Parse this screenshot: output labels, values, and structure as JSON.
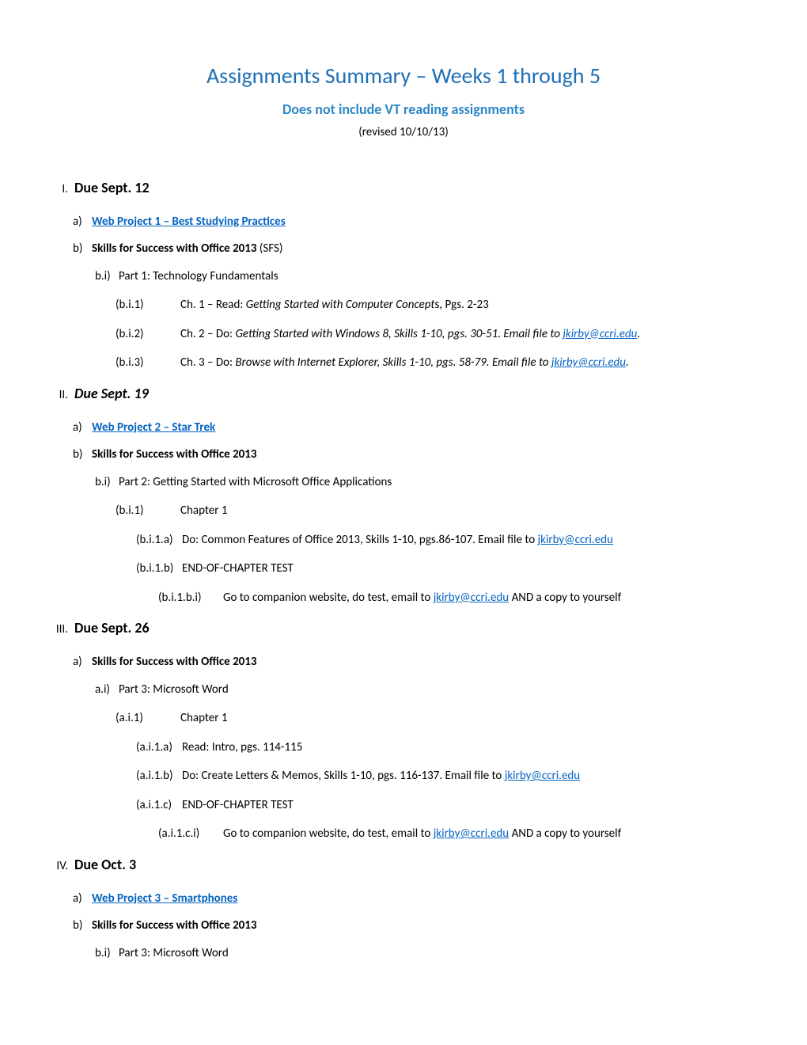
{
  "title": "Assignments Summary – Weeks 1 through 5",
  "subtitle": "Does not include VT reading assignments",
  "revised": "(revised 10/10/13)",
  "colors": {
    "title": "#1f6fb5",
    "subtitle": "#2e88c7",
    "link": "#0563c1",
    "text": "#000000",
    "background": "#ffffff"
  },
  "sections": [
    {
      "roman": "I.",
      "heading": "Due Sept. 12",
      "italic": false,
      "items": {
        "a_link": "Web Project 1 – Best Studying Practices",
        "b_text_bold": "Skills for Success with Office 2013",
        "b_text_suffix": " (SFS)",
        "bi_text": "Part 1: Technology Fundamentals",
        "bi1_prefix": "Ch. 1 – Read: ",
        "bi1_italic": "Getting Started with Computer Concept",
        "bi1_suffix": "s, Pgs. 2-23",
        "bi2_prefix": "Ch. 2 – Do: ",
        "bi2_italic": "Getting Started with Windows 8, Skills 1-10, pgs. 30-51. Email file to ",
        "bi2_link": "jkirby@ccri.edu",
        "bi2_period": ".",
        "bi3_prefix": "Ch. 3 – Do: ",
        "bi3_italic": "Browse with Internet Explorer, Skills 1-10, pgs. 58-79. Email file to ",
        "bi3_link": "jkirby@ccri.edu",
        "bi3_period": "."
      }
    },
    {
      "roman": "II.",
      "heading": "Due Sept. 19",
      "italic": true,
      "items": {
        "a_link": "Web Project 2 – Star Trek",
        "b_text_bold": "Skills for Success with Office 2013",
        "bi_text": "Part 2: Getting Started with Microsoft Office Applications",
        "bi1_text": "Chapter 1",
        "bi1a_text": "Do: Common Features of Office 2013, Skills 1-10, pgs.86-107. Email file to ",
        "bi1a_link": "jkirby@ccri.edu",
        "bi1b_text": "END-OF-CHAPTER TEST",
        "bi1bi_text": "Go to companion website, do test, email to ",
        "bi1bi_link": "jkirby@ccri.edu",
        "bi1bi_suffix": "  AND a copy to yourself"
      }
    },
    {
      "roman": "III.",
      "heading": "Due Sept. 26",
      "italic": false,
      "items": {
        "a_text_bold": "Skills for Success with Office 2013",
        "ai_text": "Part 3: Microsoft Word",
        "ai1_text": "Chapter 1",
        "ai1a_text": "Read: Intro, pgs. 114-115",
        "ai1b_text": "Do: Create Letters & Memos, Skills 1-10, pgs. 116-137. Email file to ",
        "ai1b_link": "jkirby@ccri.edu",
        "ai1c_text": "END-OF-CHAPTER TEST",
        "ai1ci_text": "Go to companion website, do test, email to ",
        "ai1ci_link": "jkirby@ccri.edu",
        "ai1ci_suffix": "  AND a copy to yourself"
      }
    },
    {
      "roman": "IV.",
      "heading": "Due Oct. 3",
      "italic": false,
      "items": {
        "a_link": "Web Project 3 – Smartphones",
        "b_text_bold": "Skills for Success with Office 2013",
        "bi_text": "Part 3: Microsoft Word"
      }
    }
  ],
  "markers": {
    "a": "a)",
    "b": "b)",
    "bi": "b.i)",
    "ai": "a.i)",
    "bi1": "(b.i.1)",
    "bi2": "(b.i.2)",
    "bi3": "(b.i.3)",
    "ai1": "(a.i.1)",
    "bi1a": "(b.i.1.a)",
    "bi1b": "(b.i.1.b)",
    "ai1a": "(a.i.1.a)",
    "ai1b": "(a.i.1.b)",
    "ai1c": "(a.i.1.c)",
    "bi1bi": "(b.i.1.b.i)",
    "ai1ci": "(a.i.1.c.i)"
  }
}
